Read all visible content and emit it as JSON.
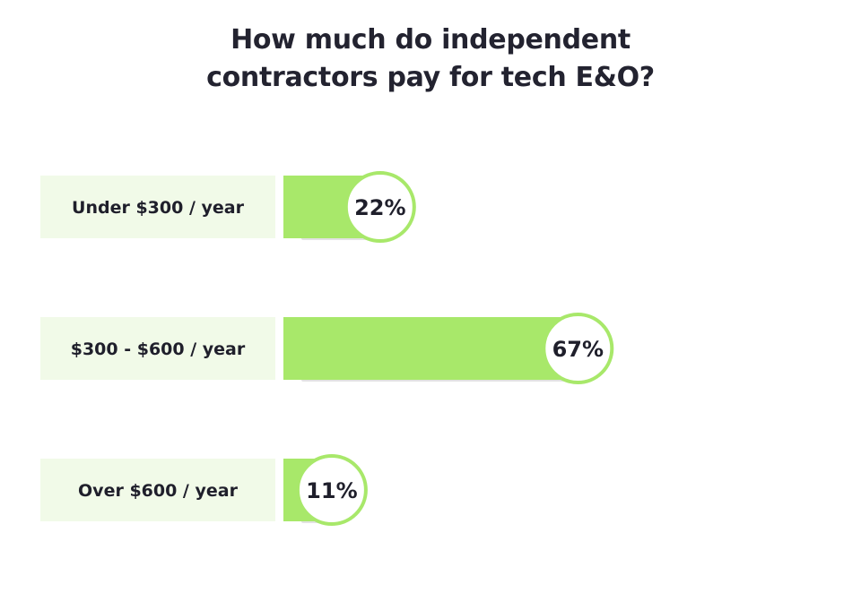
{
  "chart_data": {
    "type": "bar",
    "orientation": "horizontal",
    "title_lines": [
      "How much do independent",
      "contractors pay for tech E&O?"
    ],
    "categories": [
      "Under $300 / year",
      "$300 - $600 / year",
      "Over $600 / year"
    ],
    "values": [
      22,
      67,
      11
    ],
    "value_labels": [
      "22%",
      "67%",
      "11%"
    ],
    "unit": "%",
    "xlim": [
      0,
      100
    ],
    "grid": false,
    "legend": "none"
  },
  "colors": {
    "bar": "#a8e86a",
    "label_bg": "#f1fae8",
    "bubble_border": "#a8e86a",
    "bubble_fill": "#ffffff",
    "shadow": "#e2e2e2",
    "text": "#1f1f2b"
  }
}
